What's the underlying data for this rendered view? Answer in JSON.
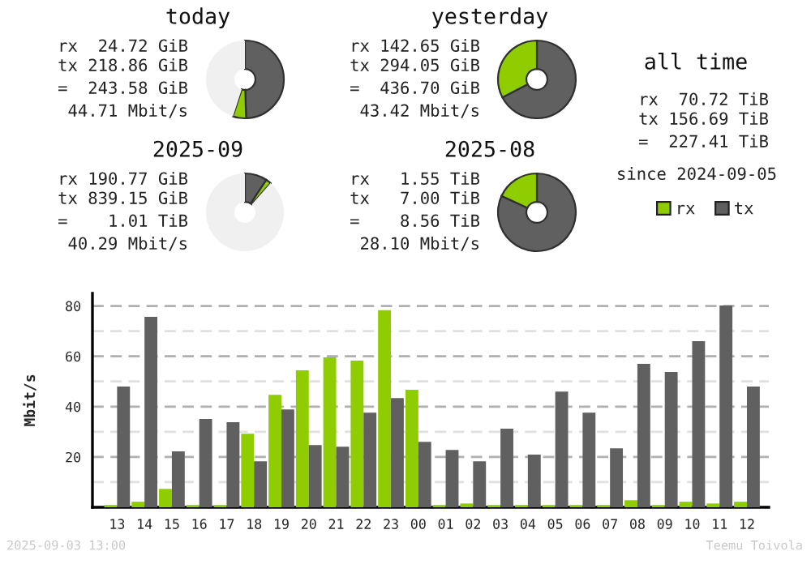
{
  "chart_data": [
    {
      "type": "donut",
      "title": "today",
      "categories": [
        null,
        null,
        null
      ],
      "values": [
        49.5,
        5.5,
        45
      ],
      "colors": [
        "#606060",
        "#8fcc00",
        "#f0f0f0"
      ],
      "annotations": [
        "rx 24.72 GiB",
        "tx 218.86 GiB",
        "= 243.58 GiB",
        "44.71 Mbit/s"
      ]
    },
    {
      "type": "donut",
      "title": "yesterday",
      "categories": [
        null,
        null
      ],
      "values": [
        67.3,
        32.7
      ],
      "colors": [
        "#606060",
        "#8fcc00"
      ],
      "annotations": [
        "rx 142.65 GiB",
        "tx 294.05 GiB",
        "= 436.70 GiB",
        "43.42 Mbit/s"
      ]
    },
    {
      "type": "donut",
      "title": "2025-09",
      "categories": [
        null,
        null,
        null
      ],
      "values": [
        9.3,
        2.2,
        88.5
      ],
      "colors": [
        "#606060",
        "#8fcc00",
        "#f0f0f0"
      ],
      "annotations": [
        "rx 190.77 GiB",
        "tx 839.15 GiB",
        "= 1.01 TiB",
        "40.29 Mbit/s"
      ]
    },
    {
      "type": "donut",
      "title": "2025-08",
      "categories": [
        null,
        null
      ],
      "values": [
        81.9,
        18.1
      ],
      "colors": [
        "#606060",
        "#8fcc00"
      ],
      "annotations": [
        "rx 1.55 TiB",
        "tx 7.00 TiB",
        "= 8.56 TiB",
        "28.10 Mbit/s"
      ]
    },
    {
      "type": "other",
      "title": "all time",
      "annotations": [
        "rx 70.72 TiB",
        "tx 156.69 TiB",
        "= 227.41 TiB",
        "since 2024-09-05"
      ]
    },
    {
      "type": "bar",
      "categories": [
        "13",
        "14",
        "15",
        "16",
        "17",
        "18",
        "19",
        "20",
        "21",
        "22",
        "23",
        "00",
        "01",
        "02",
        "03",
        "04",
        "05",
        "06",
        "07",
        "08",
        "09",
        "10",
        "11",
        "12"
      ],
      "series": [
        {
          "name": "rx",
          "color": "#8fcc00",
          "values": [
            0.9,
            2.2,
            7.3,
            0.9,
            0.9,
            29.2,
            44.7,
            54.4,
            59.6,
            58.3,
            78.3,
            46.7,
            0.9,
            1.5,
            0.9,
            0.9,
            0.9,
            0.9,
            0.9,
            2.8,
            0.9,
            2.2,
            1.5,
            2.2
          ]
        },
        {
          "name": "tx",
          "color": "#606060",
          "values": [
            48.0,
            75.7,
            22.2,
            35.1,
            33.8,
            18.3,
            38.9,
            24.7,
            24.1,
            37.6,
            43.4,
            26.0,
            22.8,
            18.3,
            31.2,
            20.9,
            46.0,
            37.6,
            23.4,
            57.0,
            53.8,
            66.0,
            80.2,
            48.0
          ]
        }
      ],
      "ylabel": "Mbit/s",
      "ylim": [
        0,
        85
      ],
      "yticks": [
        {
          "value": 10,
          "label": null
        },
        20,
        {
          "value": 30,
          "label": null
        },
        40,
        {
          "value": 50,
          "label": null
        },
        60,
        {
          "value": 70,
          "label": null
        },
        80
      ],
      "grid": "y",
      "legend": "top right",
      "annotations": [
        "2025-09-03 13:00",
        "Teemu Toivola"
      ]
    }
  ]
}
